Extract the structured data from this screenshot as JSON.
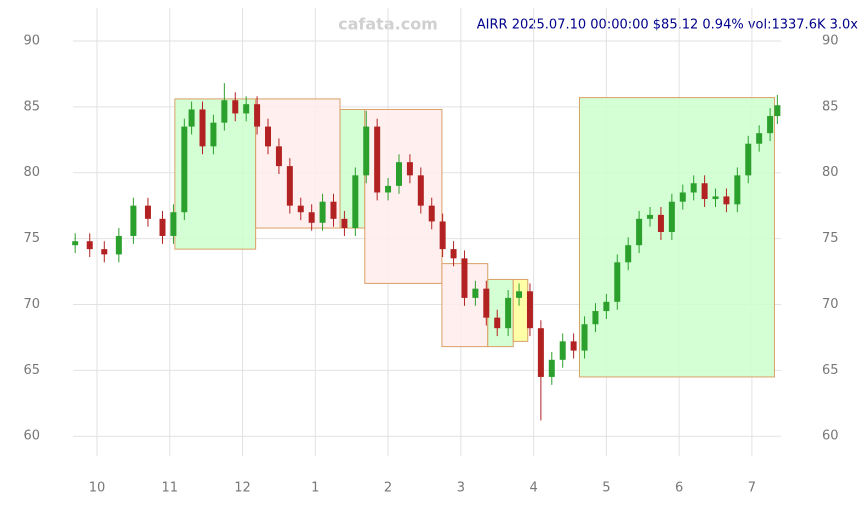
{
  "chart_data": {
    "type": "candlestick",
    "title": "AIRR 2025.07.10 00:00:00 $85.12 0.94% vol:1337.6K 3.0x",
    "watermark": "cafata.com",
    "x": [
      9.7,
      9.9,
      10.1,
      10.3,
      10.5,
      10.7,
      10.9,
      11.05,
      11.2,
      11.3,
      11.45,
      11.6,
      11.75,
      11.9,
      12.05,
      12.2,
      12.35,
      12.5,
      12.65,
      12.8,
      12.95,
      13.1,
      13.25,
      13.4,
      13.55,
      13.7,
      13.85,
      14.0,
      14.15,
      14.3,
      14.45,
      14.6,
      14.75,
      14.9,
      15.05,
      15.2,
      15.35,
      15.5,
      15.65,
      15.8,
      15.95,
      16.1,
      16.25,
      16.4,
      16.55,
      16.7,
      16.85,
      17.0,
      17.15,
      17.3,
      17.45,
      17.6,
      17.75,
      17.9,
      18.05,
      18.2,
      18.35,
      18.5,
      18.65,
      18.8,
      18.95,
      19.1,
      19.25,
      19.35
    ],
    "open": [
      74.5,
      74.8,
      74.2,
      73.8,
      75.2,
      77.5,
      76.5,
      75.2,
      77.0,
      83.5,
      84.8,
      82.0,
      83.8,
      85.5,
      84.5,
      85.2,
      83.5,
      82.0,
      80.5,
      77.5,
      77.0,
      76.2,
      77.8,
      76.5,
      75.8,
      79.8,
      83.5,
      78.5,
      79.0,
      80.8,
      79.8,
      77.5,
      76.3,
      74.2,
      73.5,
      70.5,
      71.2,
      69.0,
      68.2,
      70.5,
      71.0,
      68.2,
      64.5,
      65.8,
      67.2,
      66.5,
      68.5,
      69.5,
      70.2,
      73.2,
      74.5,
      76.5,
      76.8,
      75.5,
      77.8,
      78.5,
      79.2,
      78.0,
      78.2,
      77.6,
      79.8,
      82.2,
      83.0,
      84.3
    ],
    "high": [
      75.4,
      75.4,
      74.8,
      75.8,
      78.1,
      78.1,
      77.1,
      77.6,
      84.1,
      85.4,
      85.4,
      84.4,
      86.8,
      86.1,
      85.8,
      85.8,
      84.1,
      82.6,
      81.1,
      78.1,
      77.6,
      78.4,
      78.4,
      77.1,
      80.4,
      84.7,
      84.1,
      79.6,
      81.4,
      81.4,
      80.4,
      78.1,
      76.9,
      74.8,
      74.1,
      71.8,
      71.8,
      69.6,
      71.1,
      71.6,
      71.6,
      68.8,
      66.4,
      67.8,
      67.8,
      69.1,
      70.1,
      70.8,
      73.8,
      75.1,
      77.1,
      77.4,
      77.4,
      78.4,
      79.1,
      79.8,
      79.8,
      78.8,
      78.8,
      80.4,
      82.8,
      83.6,
      84.9,
      85.9
    ],
    "low": [
      73.9,
      73.6,
      73.2,
      73.2,
      74.6,
      75.9,
      74.6,
      74.6,
      76.4,
      82.9,
      81.4,
      81.4,
      83.2,
      83.9,
      83.9,
      82.9,
      81.4,
      79.9,
      76.9,
      76.4,
      75.6,
      75.6,
      75.9,
      75.2,
      75.2,
      79.2,
      77.9,
      77.9,
      78.4,
      79.2,
      76.9,
      75.7,
      73.6,
      72.9,
      69.9,
      69.9,
      68.4,
      67.6,
      67.6,
      69.9,
      67.6,
      61.2,
      63.9,
      65.2,
      65.9,
      65.9,
      67.9,
      68.9,
      69.6,
      72.6,
      73.9,
      75.9,
      74.9,
      74.9,
      77.2,
      77.9,
      77.4,
      77.4,
      77.0,
      77.0,
      79.2,
      81.6,
      82.4,
      83.7
    ],
    "close": [
      74.8,
      74.2,
      73.8,
      75.2,
      77.5,
      76.5,
      75.2,
      77.0,
      83.5,
      84.8,
      82.0,
      83.8,
      85.5,
      84.5,
      85.2,
      83.5,
      82.0,
      80.5,
      77.5,
      77.0,
      76.2,
      77.8,
      76.5,
      75.8,
      79.8,
      83.5,
      78.5,
      79.0,
      80.8,
      79.8,
      77.5,
      76.3,
      74.2,
      73.5,
      70.5,
      71.2,
      69.0,
      68.2,
      70.5,
      71.0,
      68.2,
      64.5,
      65.8,
      67.2,
      66.5,
      68.5,
      69.5,
      70.2,
      73.2,
      74.5,
      76.5,
      76.8,
      75.5,
      77.8,
      78.5,
      79.2,
      78.0,
      78.2,
      77.6,
      79.8,
      82.2,
      83.0,
      84.3,
      85.12
    ],
    "up_color": "#2ca02c",
    "down_color": "#b22222",
    "zones": [
      {
        "x": [
          11.07,
          12.18
        ],
        "y": [
          74.2,
          85.6
        ],
        "color": "#ccffcc"
      },
      {
        "x": [
          12.18,
          13.34
        ],
        "y": [
          75.8,
          85.6
        ],
        "color": "#ffecec"
      },
      {
        "x": [
          13.34,
          13.68
        ],
        "y": [
          75.8,
          84.8
        ],
        "color": "#ccffcc"
      },
      {
        "x": [
          13.68,
          14.74
        ],
        "y": [
          71.6,
          84.8
        ],
        "color": "#ffecec"
      },
      {
        "x": [
          14.74,
          15.37
        ],
        "y": [
          66.8,
          73.1
        ],
        "color": "#ffecec"
      },
      {
        "x": [
          15.37,
          15.72
        ],
        "y": [
          66.8,
          71.9
        ],
        "color": "#ccffcc"
      },
      {
        "x": [
          15.72,
          15.92
        ],
        "y": [
          67.2,
          71.9
        ],
        "color": "#ffff99"
      },
      {
        "x": [
          16.63,
          19.31
        ],
        "y": [
          64.5,
          85.7
        ],
        "color": "#ccffcc"
      }
    ],
    "xlim": [
      9.67,
      19.4
    ],
    "xticks": [
      10,
      11,
      12,
      {
        "value": 13,
        "label": "1"
      },
      {
        "value": 14,
        "label": "2"
      },
      {
        "value": 15,
        "label": "3"
      },
      {
        "value": 16,
        "label": "4"
      },
      {
        "value": 17,
        "label": "5"
      },
      {
        "value": 18,
        "label": "6"
      },
      {
        "value": 19,
        "label": "7"
      }
    ],
    "ylim": [
      58.5,
      92.5
    ],
    "yticks": [
      60,
      65,
      70,
      75,
      80,
      85,
      90
    ],
    "grid": true
  }
}
